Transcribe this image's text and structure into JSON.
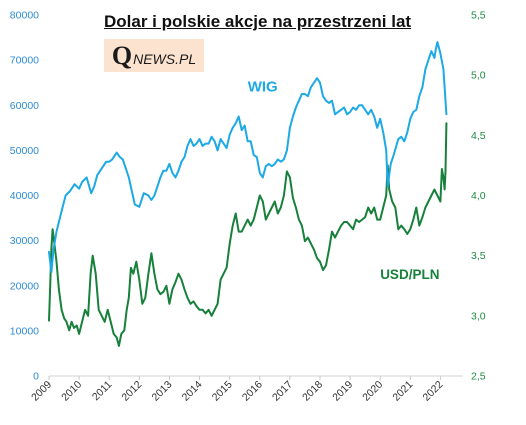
{
  "header": {
    "title": "Dolar i polskie akcje na przestrzeni lat",
    "logo_q": "Q",
    "logo_rest": "NEWS.PL"
  },
  "colors": {
    "wig": "#1ca9e6",
    "usdpln": "#17803a",
    "left_axis": "#2e8bd6",
    "right_axis": "#1f8a43",
    "x_axis": "#333333"
  },
  "chart_data": {
    "type": "line",
    "title": "Dolar i polskie akcje na przestrzeni lat",
    "xlabel": "",
    "x_ticks": [
      "2009",
      "2010",
      "2011",
      "2012",
      "2013",
      "2014",
      "2015",
      "2016",
      "2017",
      "2018",
      "2019",
      "2020",
      "2021",
      "2022"
    ],
    "xlim": [
      2009.0,
      2022.75
    ],
    "ylim_left": [
      0,
      80000
    ],
    "y_ticks_left": [
      "0",
      "10000",
      "20000",
      "30000",
      "40000",
      "50000",
      "60000",
      "70000",
      "80000"
    ],
    "ylim_right": [
      2.5,
      5.5
    ],
    "y_ticks_right": [
      "2,5",
      "3,0",
      "3,5",
      "4,0",
      "4,5",
      "5,0",
      "5,5"
    ],
    "series": [
      {
        "name": "WIG",
        "axis": "left",
        "x": [
          2009.0,
          2009.08,
          2009.15,
          2009.25,
          2009.4,
          2009.55,
          2009.7,
          2009.85,
          2010.0,
          2010.1,
          2010.25,
          2010.4,
          2010.5,
          2010.6,
          2010.75,
          2010.9,
          2011.0,
          2011.1,
          2011.25,
          2011.35,
          2011.45,
          2011.55,
          2011.65,
          2011.75,
          2011.85,
          2012.0,
          2012.15,
          2012.3,
          2012.4,
          2012.5,
          2012.6,
          2012.7,
          2012.8,
          2012.9,
          2013.0,
          2013.1,
          2013.2,
          2013.3,
          2013.4,
          2013.5,
          2013.6,
          2013.7,
          2013.8,
          2013.9,
          2014.0,
          2014.1,
          2014.2,
          2014.3,
          2014.4,
          2014.5,
          2014.6,
          2014.7,
          2014.8,
          2014.9,
          2015.0,
          2015.1,
          2015.2,
          2015.3,
          2015.4,
          2015.5,
          2015.6,
          2015.7,
          2015.8,
          2015.9,
          2016.0,
          2016.1,
          2016.2,
          2016.3,
          2016.4,
          2016.5,
          2016.6,
          2016.7,
          2016.8,
          2016.9,
          2017.0,
          2017.1,
          2017.2,
          2017.3,
          2017.4,
          2017.5,
          2017.6,
          2017.7,
          2017.8,
          2017.9,
          2018.0,
          2018.1,
          2018.2,
          2018.3,
          2018.4,
          2018.5,
          2018.6,
          2018.7,
          2018.8,
          2018.9,
          2019.0,
          2019.1,
          2019.2,
          2019.3,
          2019.4,
          2019.5,
          2019.6,
          2019.7,
          2019.8,
          2019.9,
          2020.0,
          2020.1,
          2020.2,
          2020.25,
          2020.35,
          2020.45,
          2020.6,
          2020.7,
          2020.8,
          2020.9,
          2021.0,
          2021.1,
          2021.2,
          2021.3,
          2021.4,
          2021.5,
          2021.6,
          2021.7,
          2021.8,
          2021.85,
          2021.9,
          2022.0,
          2022.1,
          2022.15,
          2022.2
        ],
        "y": [
          27500,
          23000,
          28000,
          32000,
          36000,
          40000,
          41000,
          42500,
          41500,
          43000,
          44000,
          40500,
          42000,
          44500,
          46000,
          47500,
          47500,
          48000,
          49500,
          48500,
          48000,
          46000,
          44000,
          41000,
          38000,
          37500,
          40500,
          40000,
          39000,
          40000,
          42000,
          44000,
          45500,
          45500,
          47000,
          45000,
          44000,
          45500,
          47500,
          48500,
          51000,
          52500,
          51000,
          51500,
          52500,
          51000,
          51500,
          51500,
          53000,
          52000,
          50000,
          52500,
          51500,
          50500,
          53500,
          55000,
          56000,
          57500,
          54500,
          55500,
          52000,
          52000,
          49000,
          48500,
          45000,
          44000,
          46500,
          47000,
          46500,
          47000,
          48000,
          47500,
          48000,
          50000,
          55000,
          57500,
          59500,
          61000,
          62500,
          62500,
          62000,
          64000,
          65000,
          66000,
          65000,
          62000,
          61000,
          60500,
          61000,
          58000,
          58500,
          59000,
          59500,
          58000,
          58500,
          59500,
          59000,
          60000,
          60000,
          59000,
          58000,
          59000,
          57500,
          55000,
          57000,
          54000,
          50000,
          42000,
          47000,
          49000,
          52500,
          53000,
          52000,
          54000,
          57000,
          58500,
          59000,
          62000,
          64000,
          68000,
          70000,
          72000,
          70500,
          72500,
          74000,
          71500,
          68000,
          63000,
          58000
        ]
      },
      {
        "name": "USD/PLN",
        "axis": "right",
        "x": [
          2009.0,
          2009.04,
          2009.08,
          2009.12,
          2009.17,
          2009.25,
          2009.33,
          2009.42,
          2009.5,
          2009.58,
          2009.67,
          2009.75,
          2009.83,
          2009.92,
          2010.0,
          2010.1,
          2010.2,
          2010.3,
          2010.38,
          2010.45,
          2010.55,
          2010.65,
          2010.75,
          2010.85,
          2010.95,
          2011.05,
          2011.15,
          2011.25,
          2011.32,
          2011.4,
          2011.5,
          2011.58,
          2011.65,
          2011.72,
          2011.8,
          2011.9,
          2012.0,
          2012.1,
          2012.2,
          2012.3,
          2012.4,
          2012.5,
          2012.6,
          2012.7,
          2012.8,
          2012.9,
          2013.0,
          2013.1,
          2013.2,
          2013.3,
          2013.4,
          2013.5,
          2013.6,
          2013.7,
          2013.8,
          2013.9,
          2014.0,
          2014.1,
          2014.2,
          2014.3,
          2014.4,
          2014.5,
          2014.6,
          2014.7,
          2014.8,
          2014.9,
          2015.0,
          2015.1,
          2015.2,
          2015.3,
          2015.4,
          2015.5,
          2015.6,
          2015.7,
          2015.8,
          2015.9,
          2016.0,
          2016.1,
          2016.2,
          2016.3,
          2016.4,
          2016.5,
          2016.6,
          2016.7,
          2016.8,
          2016.9,
          2017.0,
          2017.1,
          2017.2,
          2017.3,
          2017.4,
          2017.5,
          2017.6,
          2017.7,
          2017.8,
          2017.9,
          2018.0,
          2018.1,
          2018.2,
          2018.3,
          2018.4,
          2018.5,
          2018.6,
          2018.7,
          2018.8,
          2018.9,
          2019.0,
          2019.1,
          2019.2,
          2019.3,
          2019.4,
          2019.5,
          2019.6,
          2019.7,
          2019.8,
          2019.9,
          2020.0,
          2020.1,
          2020.2,
          2020.25,
          2020.3,
          2020.4,
          2020.5,
          2020.6,
          2020.7,
          2020.8,
          2020.9,
          2021.0,
          2021.1,
          2021.2,
          2021.3,
          2021.4,
          2021.5,
          2021.6,
          2021.7,
          2021.8,
          2021.9,
          2022.0,
          2022.05,
          2022.1,
          2022.14,
          2022.17,
          2022.2
        ],
        "y": [
          2.96,
          3.25,
          3.56,
          3.72,
          3.62,
          3.45,
          3.22,
          3.05,
          2.98,
          2.95,
          2.88,
          2.95,
          2.9,
          2.92,
          2.85,
          2.95,
          3.05,
          3.0,
          3.35,
          3.5,
          3.35,
          3.05,
          3.0,
          2.95,
          3.05,
          2.95,
          2.85,
          2.82,
          2.75,
          2.85,
          2.88,
          3.05,
          3.15,
          3.4,
          3.35,
          3.45,
          3.3,
          3.1,
          3.15,
          3.35,
          3.52,
          3.35,
          3.22,
          3.18,
          3.2,
          3.25,
          3.1,
          3.22,
          3.28,
          3.35,
          3.3,
          3.22,
          3.15,
          3.1,
          3.12,
          3.08,
          3.05,
          3.05,
          3.02,
          3.05,
          3.0,
          3.05,
          3.1,
          3.3,
          3.35,
          3.4,
          3.6,
          3.75,
          3.85,
          3.7,
          3.7,
          3.75,
          3.8,
          3.75,
          3.8,
          3.9,
          4.0,
          3.95,
          3.8,
          3.85,
          3.9,
          3.95,
          3.85,
          3.9,
          4.0,
          4.2,
          4.15,
          3.98,
          3.9,
          3.8,
          3.75,
          3.62,
          3.65,
          3.6,
          3.55,
          3.48,
          3.45,
          3.38,
          3.42,
          3.55,
          3.7,
          3.65,
          3.7,
          3.75,
          3.78,
          3.78,
          3.75,
          3.72,
          3.8,
          3.78,
          3.8,
          3.82,
          3.9,
          3.85,
          3.9,
          3.8,
          3.8,
          3.9,
          4.0,
          4.25,
          4.05,
          3.95,
          3.9,
          3.72,
          3.75,
          3.72,
          3.68,
          3.72,
          3.8,
          3.9,
          3.75,
          3.82,
          3.9,
          3.95,
          4.0,
          4.05,
          4.0,
          3.95,
          4.22,
          4.15,
          4.05,
          4.2,
          4.6
        ]
      }
    ],
    "annotations": [
      {
        "text": "WIG",
        "x": 2015.6,
        "y_left": 63000
      },
      {
        "text": "USD/PLN",
        "x": 2020.0,
        "y_left": 21500
      }
    ]
  }
}
